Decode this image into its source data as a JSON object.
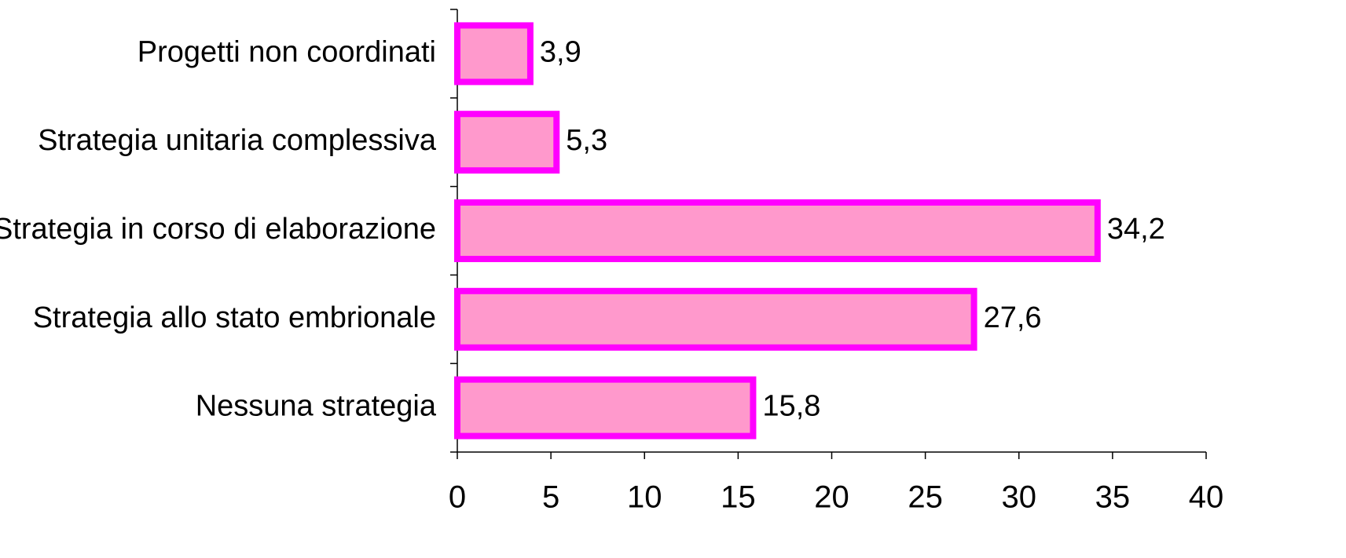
{
  "chart_data": {
    "type": "bar",
    "orientation": "horizontal",
    "categories": [
      "Progetti non coordinati",
      "Strategia unitaria complessiva",
      "Strategia in corso di elaborazione",
      "Strategia allo stato embrionale",
      "Nessuna strategia"
    ],
    "values": [
      3.9,
      5.3,
      34.2,
      27.6,
      15.8
    ],
    "value_labels": [
      "3,9",
      "5,3",
      "34,2",
      "27,6",
      "15,8"
    ],
    "color": "#ff99cc",
    "edge_color": "#ff00ff",
    "xlim": [
      0,
      40
    ],
    "xticks": [
      0,
      5,
      10,
      15,
      20,
      25,
      30,
      35,
      40
    ],
    "grid": false
  }
}
